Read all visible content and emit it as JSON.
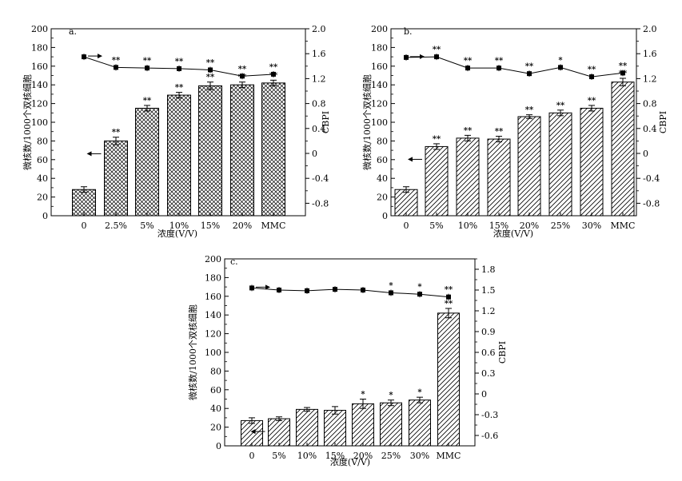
{
  "chart_data": [
    {
      "panel": "a.",
      "type": "bar+line",
      "categories": [
        "0",
        "2.5%",
        "5%",
        "10%",
        "15%",
        "20%",
        "MMC"
      ],
      "values": [
        28,
        80,
        115,
        129,
        139,
        140,
        142
      ],
      "errors": [
        3,
        4,
        3,
        3,
        4,
        3,
        3
      ],
      "bar_marks": [
        "",
        "**",
        "**",
        "**",
        "**",
        "**",
        "**"
      ],
      "cbpi": [
        1.55,
        1.38,
        1.37,
        1.36,
        1.34,
        1.24,
        1.27
      ],
      "cbpi_marks": [
        "",
        "**",
        "**",
        "**",
        "**",
        "**",
        "**"
      ],
      "xlabel": "浓度(V/V)",
      "ylabel": "微核数/1000个双核细胞",
      "y2label": "CBPI",
      "ylim": [
        0,
        200
      ],
      "yticks": [
        "0",
        "20",
        "40",
        "60",
        "80",
        "100",
        "120",
        "140",
        "160",
        "180",
        "200"
      ],
      "y2lim": [
        -1.0,
        2.0
      ],
      "y2ticks": [
        "-0.8",
        "-0.4",
        "0",
        "0.4",
        "0.8",
        "1.2",
        "1.6",
        "2.0"
      ],
      "hatch": "crosshatch"
    },
    {
      "panel": "b.",
      "type": "bar+line",
      "categories": [
        "0",
        "5%",
        "10%",
        "15%",
        "20%",
        "25%",
        "30%",
        "MMC"
      ],
      "values": [
        28,
        74,
        83,
        82,
        106,
        110,
        115,
        143
      ],
      "errors": [
        3,
        3,
        3,
        3,
        2,
        3,
        3,
        4
      ],
      "bar_marks": [
        "",
        "**",
        "**",
        "**",
        "**",
        "**",
        "**",
        "**"
      ],
      "cbpi": [
        1.54,
        1.55,
        1.37,
        1.37,
        1.28,
        1.38,
        1.23,
        1.29
      ],
      "cbpi_marks": [
        "",
        "**",
        "**",
        "**",
        "**",
        "*",
        "**",
        "**"
      ],
      "xlabel": "浓度(V/V)",
      "ylabel": "微核数/1000个双核细胞",
      "y2label": "CBPI",
      "ylim": [
        0,
        200
      ],
      "yticks": [
        "0",
        "20",
        "40",
        "60",
        "80",
        "100",
        "120",
        "140",
        "160",
        "180",
        "200"
      ],
      "y2lim": [
        -1.0,
        2.0
      ],
      "y2ticks": [
        "-0.8",
        "-0.4",
        "0",
        "0.4",
        "0.8",
        "1.2",
        "1.6",
        "2.0"
      ],
      "hatch": "diagonal"
    },
    {
      "panel": "c.",
      "type": "bar+line",
      "categories": [
        "0",
        "5%",
        "10%",
        "15%",
        "20%",
        "25%",
        "30%",
        "MMC"
      ],
      "values": [
        27,
        29,
        39,
        38,
        45,
        46,
        49,
        142
      ],
      "errors": [
        3,
        2,
        2,
        4,
        5,
        3,
        3,
        5
      ],
      "bar_marks": [
        "",
        "",
        "",
        "",
        "*",
        "*",
        "*",
        "**"
      ],
      "cbpi": [
        1.53,
        1.5,
        1.49,
        1.51,
        1.5,
        1.46,
        1.44,
        1.4
      ],
      "cbpi_marks": [
        "",
        "",
        "",
        "",
        "",
        "*",
        "*",
        "**"
      ],
      "xlabel": "浓度(V/V)",
      "ylabel": "微核数/1000个双核细胞",
      "y2label": "CBPI",
      "ylim": [
        0,
        200
      ],
      "yticks": [
        "0",
        "20",
        "40",
        "60",
        "80",
        "100",
        "120",
        "140",
        "160",
        "180",
        "200"
      ],
      "y2lim": [
        -0.75,
        1.95
      ],
      "y2ticks": [
        "-0.6",
        "-0.3",
        "0",
        "0.3",
        "0.6",
        "0.9",
        "1.2",
        "1.5",
        "1.8"
      ],
      "hatch": "diagonal"
    }
  ]
}
